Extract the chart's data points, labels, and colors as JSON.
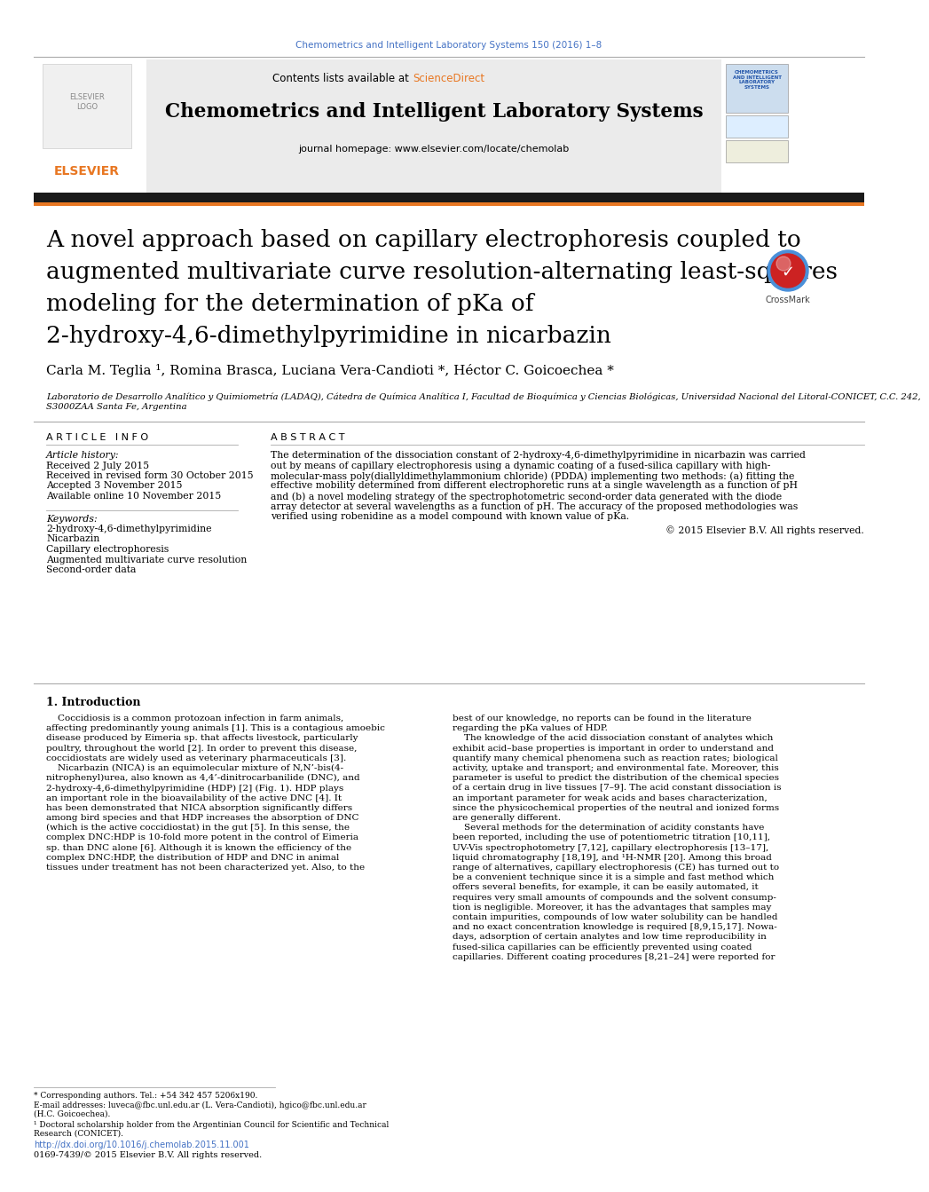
{
  "page_bg": "#ffffff",
  "top_journal_ref": "Chemometrics and Intelligent Laboratory Systems 150 (2016) 1–8",
  "top_journal_ref_color": "#4472c4",
  "header_bg": "#e8e8e8",
  "journal_title": "Chemometrics and Intelligent Laboratory Systems",
  "journal_homepage": "journal homepage: www.elsevier.com/locate/chemolab",
  "dark_bar_color": "#1a1a1a",
  "orange_bar_color": "#e87722",
  "article_title_lines": [
    "A novel approach based on capillary electrophoresis coupled to",
    "augmented multivariate curve resolution-alternating least-squares",
    "modeling for the determination of pKa of",
    "2-hydroxy-4,6-dimethylpyrimidine in nicarbazin"
  ],
  "authors": "Carla M. Teglia ¹, Romina Brasca, Luciana Vera-Candioti *, Héctor C. Goicoechea *",
  "affiliation_lines": [
    "Laboratorio de Desarrollo Analítico y Quimiometría (LADAQ), Cátedra de Química Analítica I, Facultad de Bioquímica y Ciencias Biológicas, Universidad Nacional del Litoral-CONICET, C.C. 242,",
    "S3000ZAA Santa Fe, Argentina"
  ],
  "article_info_title": "A R T I C L E   I N F O",
  "article_history_title": "Article history:",
  "article_history": [
    "Received 2 July 2015",
    "Received in revised form 30 October 2015",
    "Accepted 3 November 2015",
    "Available online 10 November 2015"
  ],
  "keywords_title": "Keywords:",
  "keywords": [
    "2-hydroxy-4,6-dimethylpyrimidine",
    "Nicarbazin",
    "Capillary electrophoresis",
    "Augmented multivariate curve resolution",
    "Second-order data"
  ],
  "abstract_title": "A B S T R A C T",
  "abstract_lines": [
    "The determination of the dissociation constant of 2-hydroxy-4,6-dimethylpyrimidine in nicarbazin was carried",
    "out by means of capillary electrophoresis using a dynamic coating of a fused-silica capillary with high-",
    "molecular-mass poly(diallyldimethylammonium chloride) (PDDA) implementing two methods: (a) fitting the",
    "effective mobility determined from different electrophoretic runs at a single wavelength as a function of pH",
    "and (b) a novel modeling strategy of the spectrophotometric second-order data generated with the diode",
    "array detector at several wavelengths as a function of pH. The accuracy of the proposed methodologies was",
    "verified using robenidine as a model compound with known value of pKa."
  ],
  "copyright": "© 2015 Elsevier B.V. All rights reserved.",
  "intro_title": "1. Introduction",
  "intro_col1_lines": [
    "    Coccidiosis is a common protozoan infection in farm animals,",
    "affecting predominantly young animals [1]. This is a contagious amoebic",
    "disease produced by Eimeria sp. that affects livestock, particularly",
    "poultry, throughout the world [2]. In order to prevent this disease,",
    "coccidiostats are widely used as veterinary pharmaceuticals [3].",
    "    Nicarbazin (NICA) is an equimolecular mixture of N,N’-bis(4-",
    "nitrophenyl)urea, also known as 4,4’-dinitrocarbanilide (DNC), and",
    "2-hydroxy-4,6-dimethylpyrimidine (HDP) [2] (Fig. 1). HDP plays",
    "an important role in the bioavailability of the active DNC [4]. It",
    "has been demonstrated that NICA absorption significantly differs",
    "among bird species and that HDP increases the absorption of DNC",
    "(which is the active coccidiostat) in the gut [5]. In this sense, the",
    "complex DNC:HDP is 10-fold more potent in the control of Eimeria",
    "sp. than DNC alone [6]. Although it is known the efficiency of the",
    "complex DNC:HDP, the distribution of HDP and DNC in animal",
    "tissues under treatment has not been characterized yet. Also, to the"
  ],
  "intro_col2_lines": [
    "best of our knowledge, no reports can be found in the literature",
    "regarding the pKa values of HDP.",
    "    The knowledge of the acid dissociation constant of analytes which",
    "exhibit acid–base properties is important in order to understand and",
    "quantify many chemical phenomena such as reaction rates; biological",
    "activity, uptake and transport; and environmental fate. Moreover, this",
    "parameter is useful to predict the distribution of the chemical species",
    "of a certain drug in live tissues [7–9]. The acid constant dissociation is",
    "an important parameter for weak acids and bases characterization,",
    "since the physicochemical properties of the neutral and ionized forms",
    "are generally different.",
    "    Several methods for the determination of acidity constants have",
    "been reported, including the use of potentiometric titration [10,11],",
    "UV-Vis spectrophotometry [7,12], capillary electrophoresis [13–17],",
    "liquid chromatography [18,19], and ¹H-NMR [20]. Among this broad",
    "range of alternatives, capillary electrophoresis (CE) has turned out to",
    "be a convenient technique since it is a simple and fast method which",
    "offers several benefits, for example, it can be easily automated, it",
    "requires very small amounts of compounds and the solvent consump-",
    "tion is negligible. Moreover, it has the advantages that samples may",
    "contain impurities, compounds of low water solubility can be handled",
    "and no exact concentration knowledge is required [8,9,15,17]. Nowa-",
    "days, adsorption of certain analytes and low time reproducibility in",
    "fused-silica capillaries can be efficiently prevented using coated",
    "capillaries. Different coating procedures [8,21–24] were reported for"
  ],
  "footnote_star": "* Corresponding authors. Tel.: +54 342 457 5206x190.",
  "footnote_email_line1": "E-mail addresses: luveca@fbc.unl.edu.ar (L. Vera-Candioti), hgico@fbc.unl.edu.ar",
  "footnote_email_line2": "(H.C. Goicoechea).",
  "footnote_1_line1": "¹ Doctoral scholarship holder from the Argentinian Council for Scientific and Technical",
  "footnote_1_line2": "Research (CONICET).",
  "doi": "http://dx.doi.org/10.1016/j.chemolab.2015.11.001",
  "issn": "0169-7439/© 2015 Elsevier B.V. All rights reserved."
}
